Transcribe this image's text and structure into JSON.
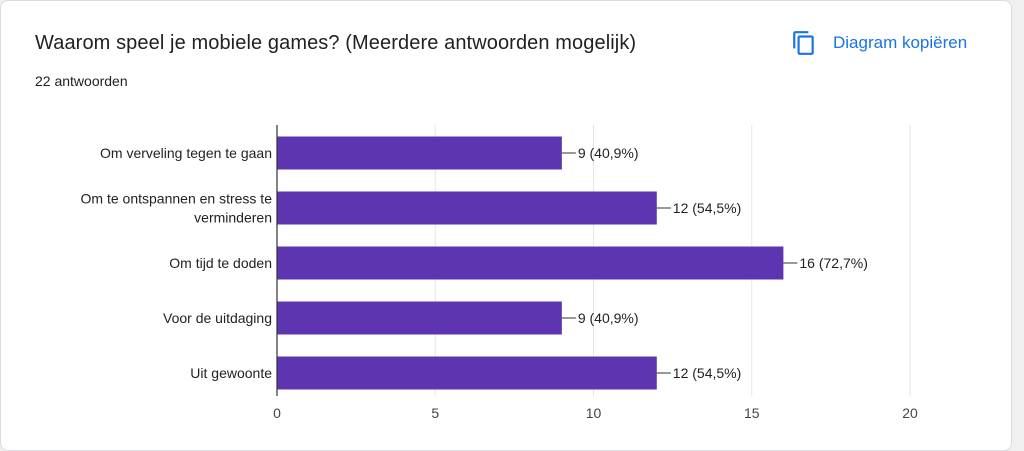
{
  "header": {
    "title": "Waarom speel je mobiele games? (Meerdere antwoorden mogelijk)",
    "responses": "22 antwoorden",
    "copy_label": "Diagram kopiëren",
    "copy_icon": "copy-icon"
  },
  "colors": {
    "bar": "#5e35b1",
    "accent": "#1a73e8",
    "grid": "#e6e6e6"
  },
  "chart_data": {
    "type": "bar",
    "orientation": "horizontal",
    "categories": [
      [
        "Om verveling tegen te gaan"
      ],
      [
        "Om te ontspannen en stress te",
        "verminderen"
      ],
      [
        "Om tijd te doden"
      ],
      [
        "Voor de uitdaging"
      ],
      [
        "Uit gewoonte"
      ]
    ],
    "values": [
      9,
      12,
      16,
      9,
      12
    ],
    "value_labels": [
      "9 (40,9%)",
      "12 (54,5%)",
      "16 (72,7%)",
      "9 (40,9%)",
      "12 (54,5%)"
    ],
    "xlim": [
      0,
      20
    ],
    "xticks": [
      0,
      5,
      10,
      15,
      20
    ],
    "grid": true
  }
}
